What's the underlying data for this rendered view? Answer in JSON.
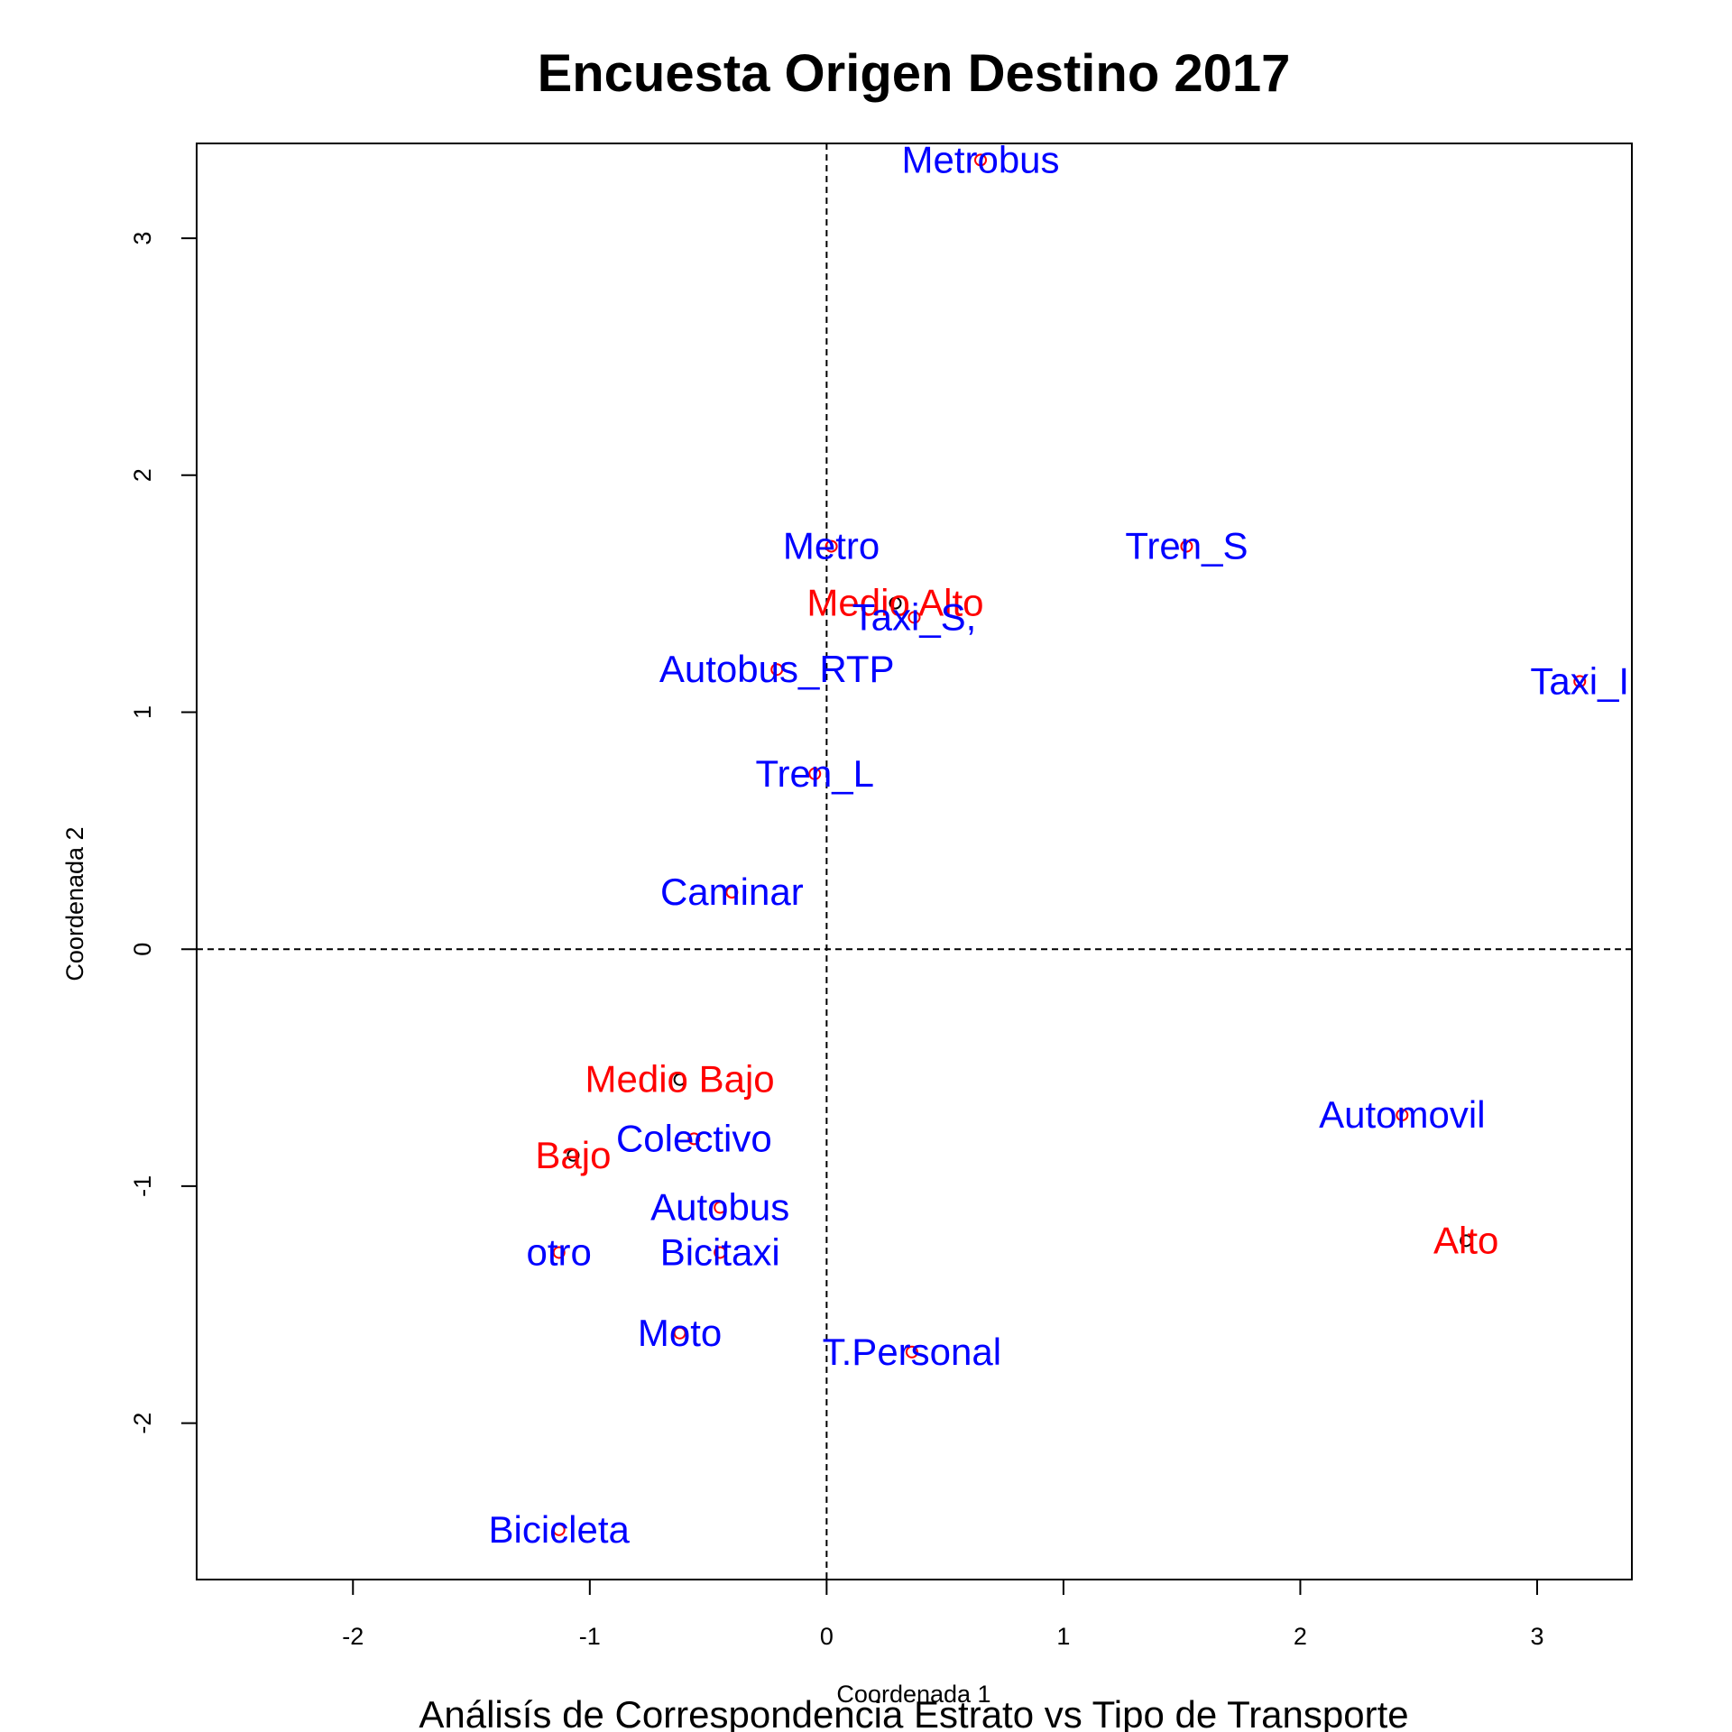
{
  "chart_data": {
    "type": "scatter",
    "title": "Encuesta Origen Destino 2017",
    "subtitle": "Análisís de Correspondencia Estrato vs Tipo de Transporte",
    "xlabel": "Coordenada 1",
    "ylabel": "Coordenada 2",
    "xlim": [
      -2.66,
      3.4
    ],
    "ylim": [
      -2.66,
      3.4
    ],
    "xticks": [
      -2,
      -1,
      0,
      1,
      2,
      3
    ],
    "yticks": [
      -2,
      -1,
      0,
      1,
      2,
      3
    ],
    "reference_lines": {
      "x": 0,
      "y": 0,
      "style": "dashed"
    },
    "series": [
      {
        "name": "Estrato",
        "color": "#ff0000",
        "marker_color": "#000000",
        "points": [
          {
            "label": "Medio Alto",
            "x": 0.29,
            "y": 1.46
          },
          {
            "label": "Medio Bajo",
            "x": -0.62,
            "y": -0.55
          },
          {
            "label": "Bajo",
            "x": -1.07,
            "y": -0.87
          },
          {
            "label": "Alto",
            "x": 2.7,
            "y": -1.23
          }
        ]
      },
      {
        "name": "Tipo de Transporte",
        "color": "#0000ff",
        "marker_color": "#ff0000",
        "points": [
          {
            "label": "Metrobus",
            "x": 0.65,
            "y": 3.33
          },
          {
            "label": "Metro",
            "x": 0.02,
            "y": 1.7
          },
          {
            "label": "Tren_S",
            "x": 1.52,
            "y": 1.7
          },
          {
            "label": "Taxi_S,",
            "x": 0.37,
            "y": 1.4
          },
          {
            "label": "Autobus_RTP",
            "x": -0.21,
            "y": 1.18
          },
          {
            "label": "Taxi_I",
            "x": 3.18,
            "y": 1.13
          },
          {
            "label": "Tren_L",
            "x": -0.05,
            "y": 0.74
          },
          {
            "label": "Caminar",
            "x": -0.4,
            "y": 0.24
          },
          {
            "label": "Colectivo",
            "x": -0.56,
            "y": -0.8
          },
          {
            "label": "Automovil",
            "x": 2.43,
            "y": -0.7
          },
          {
            "label": "Autobus",
            "x": -0.45,
            "y": -1.09
          },
          {
            "label": "otro",
            "x": -1.13,
            "y": -1.28
          },
          {
            "label": "Bicitaxi",
            "x": -0.45,
            "y": -1.28
          },
          {
            "label": "Moto",
            "x": -0.62,
            "y": -1.62
          },
          {
            "label": "T.Personal",
            "x": 0.36,
            "y": -1.7
          },
          {
            "label": "Bicicleta",
            "x": -1.13,
            "y": -2.45
          }
        ]
      }
    ]
  }
}
